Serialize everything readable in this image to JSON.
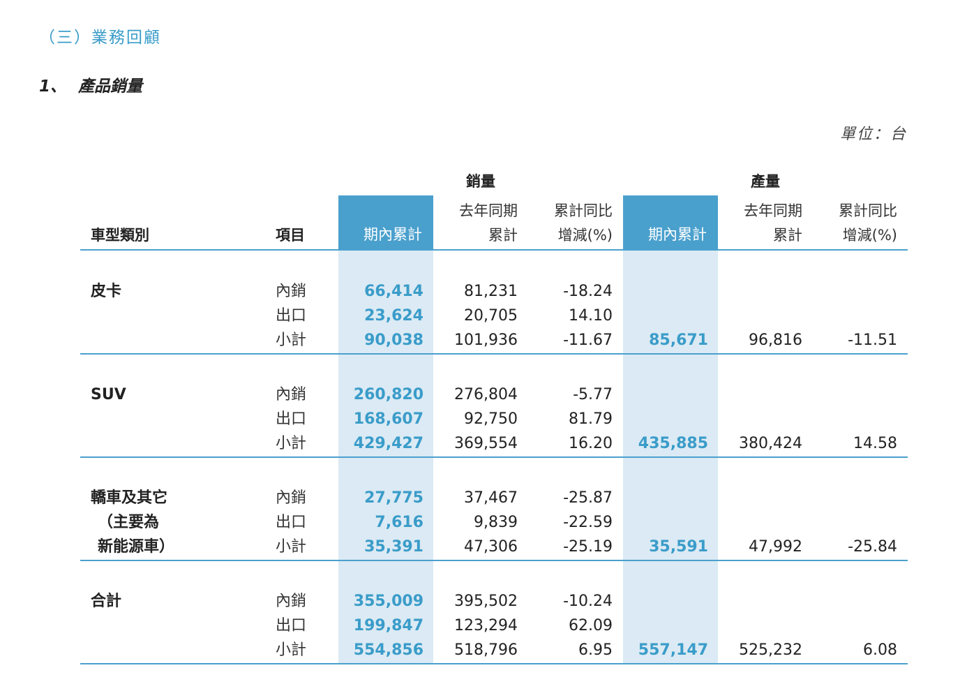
{
  "section_title": "（三）業務回顧",
  "sub_number": "1、",
  "sub_title": "產品銷量",
  "unit_label": "單位：台",
  "headers": {
    "category": "車型類別",
    "item": "項目",
    "sales_group": "銷量",
    "production_group": "產量",
    "period_cumulative": "期內累計",
    "last_year_line1": "去年同期",
    "last_year_line2": "累計",
    "yoy_line1": "累計同比",
    "yoy_line2": "增減(%)"
  },
  "groups": [
    {
      "category_lines": [
        "皮卡"
      ],
      "rows": [
        {
          "item": "內銷",
          "sales": "66,414",
          "sales_ly": "81,231",
          "sales_yoy": "-18.24",
          "prod": "",
          "prod_ly": "",
          "prod_yoy": ""
        },
        {
          "item": "出口",
          "sales": "23,624",
          "sales_ly": "20,705",
          "sales_yoy": "14.10",
          "prod": "",
          "prod_ly": "",
          "prod_yoy": ""
        },
        {
          "item": "小計",
          "sales": "90,038",
          "sales_ly": "101,936",
          "sales_yoy": "-11.67",
          "prod": "85,671",
          "prod_ly": "96,816",
          "prod_yoy": "-11.51"
        }
      ]
    },
    {
      "category_lines": [
        "SUV"
      ],
      "rows": [
        {
          "item": "內銷",
          "sales": "260,820",
          "sales_ly": "276,804",
          "sales_yoy": "-5.77",
          "prod": "",
          "prod_ly": "",
          "prod_yoy": ""
        },
        {
          "item": "出口",
          "sales": "168,607",
          "sales_ly": "92,750",
          "sales_yoy": "81.79",
          "prod": "",
          "prod_ly": "",
          "prod_yoy": ""
        },
        {
          "item": "小計",
          "sales": "429,427",
          "sales_ly": "369,554",
          "sales_yoy": "16.20",
          "prod": "435,885",
          "prod_ly": "380,424",
          "prod_yoy": "14.58"
        }
      ]
    },
    {
      "category_lines": [
        "轎車及其它",
        "（主要為",
        "新能源車）"
      ],
      "rows": [
        {
          "item": "內銷",
          "sales": "27,775",
          "sales_ly": "37,467",
          "sales_yoy": "-25.87",
          "prod": "",
          "prod_ly": "",
          "prod_yoy": ""
        },
        {
          "item": "出口",
          "sales": "7,616",
          "sales_ly": "9,839",
          "sales_yoy": "-22.59",
          "prod": "",
          "prod_ly": "",
          "prod_yoy": ""
        },
        {
          "item": "小計",
          "sales": "35,391",
          "sales_ly": "47,306",
          "sales_yoy": "-25.19",
          "prod": "35,591",
          "prod_ly": "47,992",
          "prod_yoy": "-25.84"
        }
      ]
    },
    {
      "category_lines": [
        "合計"
      ],
      "rows": [
        {
          "item": "內銷",
          "sales": "355,009",
          "sales_ly": "395,502",
          "sales_yoy": "-10.24",
          "prod": "",
          "prod_ly": "",
          "prod_yoy": ""
        },
        {
          "item": "出口",
          "sales": "199,847",
          "sales_ly": "123,294",
          "sales_yoy": "62.09",
          "prod": "",
          "prod_ly": "",
          "prod_yoy": ""
        },
        {
          "item": "小計",
          "sales": "554,856",
          "sales_ly": "518,796",
          "sales_yoy": "6.95",
          "prod": "557,147",
          "prod_ly": "525,232",
          "prod_yoy": "6.08"
        }
      ]
    }
  ]
}
